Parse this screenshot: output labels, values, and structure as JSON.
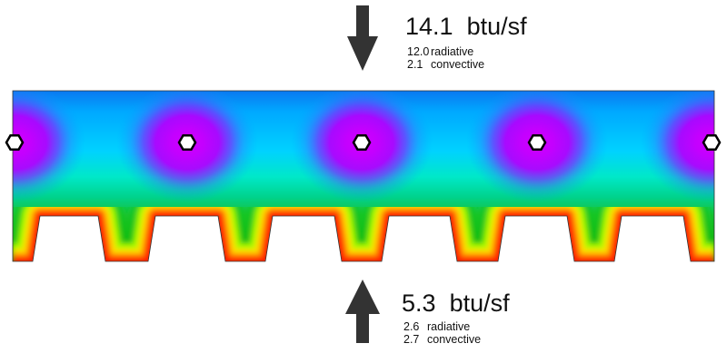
{
  "top_flux": {
    "value": "14.1",
    "unit": "btu/sf",
    "radiative": "12.0",
    "radiative_label": "radiative",
    "convective": "2.1",
    "convective_label": "convective"
  },
  "bottom_flux": {
    "value": "5.3",
    "unit": "btu/sf",
    "radiative": "2.6",
    "radiative_label": "radiative",
    "convective": "2.7",
    "convective_label": "convective"
  },
  "colors": {
    "cold": "#ff00ff",
    "cool": "#00a0ff",
    "mid": "#00e0c0",
    "warm": "#00c000",
    "hot": "#ff0000",
    "arrow": "#333333"
  },
  "icons": {
    "top_arrow": "arrow-down-icon",
    "bottom_arrow": "arrow-up-icon",
    "holes": "hexagon-hole-icon"
  }
}
